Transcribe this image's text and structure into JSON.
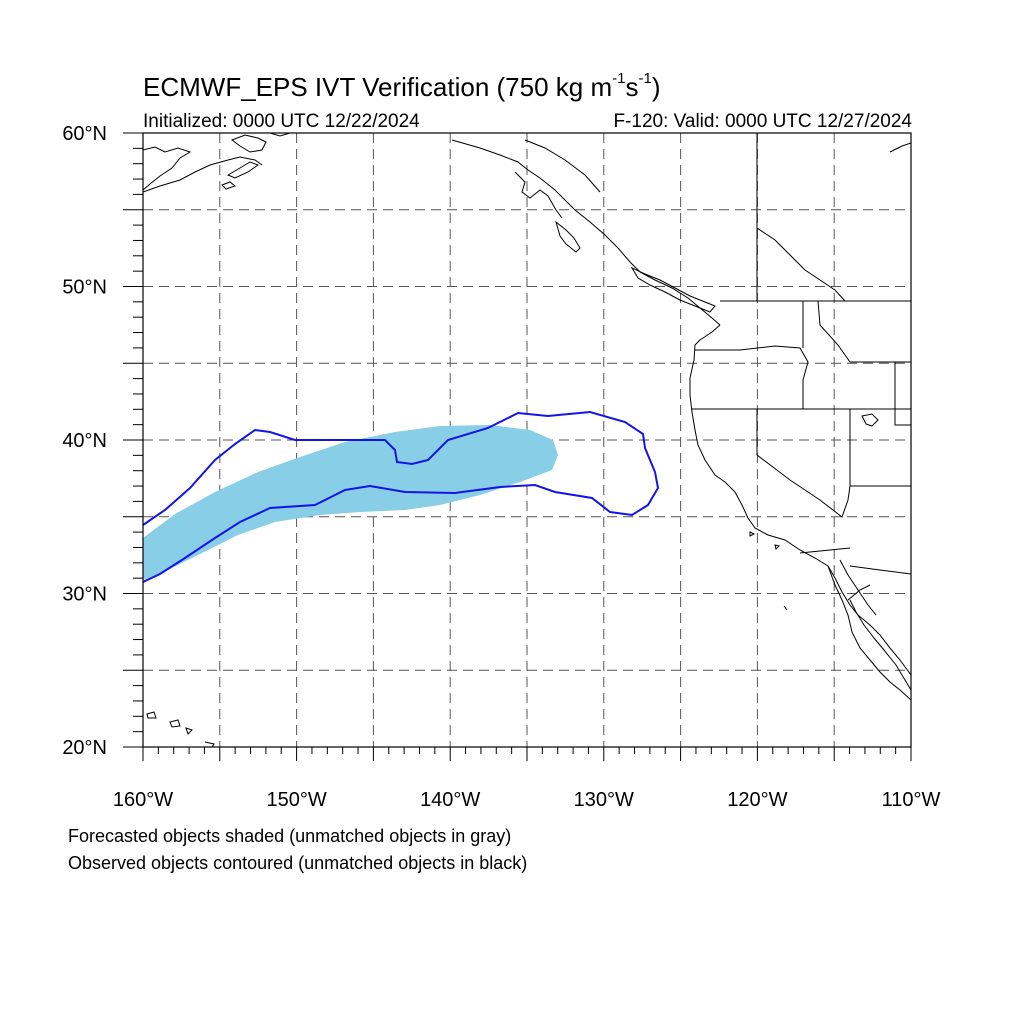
{
  "title": {
    "prefix": "ECMWF_EPS IVT Verification (750 kg m",
    "exp1": "-1",
    "mid": "s",
    "exp2": "-1",
    "suffix": ")"
  },
  "initialized": "Initialized: 0000 UTC 12/22/2024",
  "valid": "F-120: Valid: 0000 UTC 12/27/2024",
  "notes": [
    "Forecasted objects shaded (unmatched objects in gray)",
    "Observed objects contoured (unmatched objects in black)"
  ],
  "map": {
    "lon_range": [
      -160,
      -110
    ],
    "lat_range": [
      20,
      60
    ],
    "lon_labels": [
      "160°W",
      "150°W",
      "140°W",
      "130°W",
      "120°W",
      "110°W"
    ],
    "lat_labels": [
      "60°N",
      "50°N",
      "40°N",
      "30°N",
      "20°N"
    ],
    "gridline_spacing_deg": 5,
    "forecast_fill_color": "#87cee6",
    "observed_contour_color": "#1414e6",
    "coastline_color": "#000000"
  }
}
